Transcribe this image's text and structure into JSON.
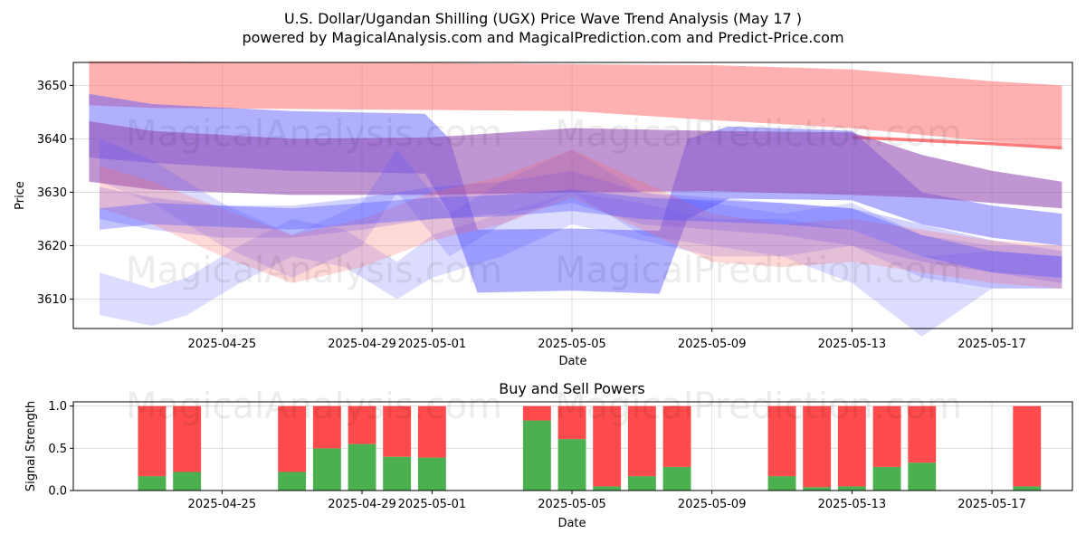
{
  "title_line1": "U.S. Dollar/Ugandan Shilling (UGX) Price Wave Trend Analysis (May 17 )",
  "title_line2": "powered by MagicalAnalysis.com and MagicalPrediction.com and Predict-Price.com",
  "watermark_left": "MagicalAnalysis.com",
  "watermark_right": "MagicalPrediction.com",
  "colors": {
    "red_band": "#ff6464",
    "blue_band": "#5050ff",
    "purple_band": "#9650b4",
    "buy": "#4caf50",
    "sell": "#ff4b4b"
  },
  "chart_data": [
    {
      "type": "area",
      "title": "",
      "xlabel": "Date",
      "ylabel": "Price",
      "ylim": [
        3604.5,
        3654.3
      ],
      "yticks": [
        3610,
        3620,
        3630,
        3640,
        3650
      ],
      "xlim_days": [
        -2.25,
        26.3
      ],
      "xticks": [
        {
          "day": 2,
          "label": "2025-04-25"
        },
        {
          "day": 6,
          "label": "2025-04-29"
        },
        {
          "day": 8,
          "label": "2025-05-01"
        },
        {
          "day": 12,
          "label": "2025-05-05"
        },
        {
          "day": 16,
          "label": "2025-05-09"
        },
        {
          "day": 20,
          "label": "2025-05-13"
        },
        {
          "day": 24,
          "label": "2025-05-17"
        }
      ],
      "x_origin_date": "2025-04-23",
      "grid": true,
      "bands": [
        {
          "color": "red",
          "alpha": 0.5,
          "x": [
            -1.8,
            0,
            4,
            8,
            12,
            16,
            20,
            24,
            26.0
          ],
          "upper": [
            3654.5,
            3654.5,
            3654.3,
            3654.2,
            3654.0,
            3653.8,
            3653.0,
            3650.8,
            3650.0
          ],
          "lower": [
            3646.3,
            3645.8,
            3645.6,
            3645.4,
            3645.2,
            3643.5,
            3642.0,
            3639.5,
            3638.5
          ]
        },
        {
          "color": "red",
          "alpha": 0.85,
          "x": [
            20,
            22,
            24,
            26.0
          ],
          "upper": [
            3640.6,
            3640.0,
            3639.4,
            3638.6
          ],
          "lower": [
            3640.0,
            3639.4,
            3638.8,
            3638.0
          ]
        },
        {
          "color": "blue",
          "alpha": 0.45,
          "x": [
            -1.8,
            0,
            4,
            7.8,
            8.5,
            9.3,
            12,
            14.5,
            15.3,
            16.5,
            20,
            22,
            24,
            26.0
          ],
          "upper": [
            3648.4,
            3646.5,
            3645.2,
            3644.7,
            3640,
            3623.0,
            3623.2,
            3622.8,
            3640,
            3642.3,
            3641.5,
            3630,
            3627.5,
            3626.0
          ],
          "lower": [
            3636.5,
            3635.5,
            3634.0,
            3633.5,
            3626,
            3611.2,
            3611.6,
            3611.0,
            3625,
            3628.8,
            3628.5,
            3624,
            3621.5,
            3620.0
          ]
        },
        {
          "color": "purple",
          "alpha": 0.6,
          "x": [
            -1.8,
            0,
            4,
            8,
            12,
            16,
            20,
            22,
            24,
            26.0
          ],
          "upper": [
            3643.3,
            3641.5,
            3640.0,
            3640.3,
            3642.0,
            3641.5,
            3641.2,
            3637.0,
            3634.0,
            3632.0
          ],
          "lower": [
            3632.0,
            3630.5,
            3629.5,
            3629.5,
            3630.0,
            3630.2,
            3629.5,
            3629.0,
            3628.0,
            3627.0
          ]
        },
        {
          "color": "blue",
          "alpha": 0.25,
          "x": [
            -1.5,
            0,
            2,
            4,
            6,
            8,
            10,
            12,
            14,
            16,
            18,
            20,
            22,
            24,
            26.0
          ],
          "upper": [
            3631,
            3629,
            3627.5,
            3627.5,
            3629,
            3631,
            3632,
            3634,
            3630,
            3629,
            3628,
            3627,
            3624,
            3621,
            3619
          ],
          "lower": [
            3625,
            3623,
            3621.5,
            3621.5,
            3623,
            3625,
            3626,
            3628,
            3624,
            3623,
            3622,
            3620,
            3617,
            3615,
            3613
          ]
        },
        {
          "color": "blue",
          "alpha": 0.2,
          "x": [
            -1.5,
            0,
            1,
            2.5,
            4,
            5.5,
            7,
            8,
            10,
            12,
            14,
            16,
            18,
            20,
            22,
            24,
            26.0
          ],
          "upper": [
            3615,
            3612,
            3614,
            3620,
            3625,
            3623,
            3617,
            3622,
            3626,
            3630,
            3628,
            3625,
            3625,
            3623,
            3618,
            3619,
            3618
          ],
          "lower": [
            3607,
            3605,
            3607,
            3613,
            3618,
            3616,
            3610,
            3614,
            3618,
            3624,
            3621,
            3618,
            3618,
            3613,
            3603,
            3612,
            3612
          ]
        },
        {
          "color": "blue",
          "alpha": 0.2,
          "x": [
            -1.5,
            0,
            2,
            4,
            6,
            7,
            8.5,
            10,
            12,
            14,
            16,
            18,
            20,
            22,
            24,
            26.0
          ],
          "upper": [
            3640,
            3636,
            3628,
            3622,
            3628,
            3638,
            3626,
            3632,
            3638,
            3630,
            3628,
            3626,
            3628,
            3622,
            3620,
            3620
          ],
          "lower": [
            3632,
            3628,
            3620,
            3614,
            3620,
            3630,
            3618,
            3624,
            3630,
            3622,
            3620,
            3618,
            3620,
            3614,
            3612,
            3612
          ]
        },
        {
          "color": "red",
          "alpha": 0.25,
          "x": [
            -1.5,
            0,
            2,
            4,
            6,
            8,
            10,
            12,
            14,
            16,
            18,
            20,
            22,
            24,
            26.0
          ],
          "upper": [
            3635,
            3632,
            3627,
            3622,
            3625,
            3630,
            3633,
            3638,
            3632,
            3626,
            3624,
            3625,
            3623,
            3621,
            3620
          ],
          "lower": [
            3627,
            3624,
            3618,
            3613,
            3616,
            3621,
            3624,
            3629,
            3623,
            3617,
            3616,
            3617,
            3615,
            3613,
            3612
          ]
        },
        {
          "color": "blue",
          "alpha": 0.35,
          "x": [
            -1.5,
            0,
            2,
            4,
            6,
            8,
            10,
            12,
            14,
            16,
            18,
            20,
            22,
            24,
            26.0
          ],
          "upper": [
            3627,
            3628,
            3627.5,
            3627,
            3628,
            3629,
            3629.5,
            3630.5,
            3629,
            3628.5,
            3628,
            3627,
            3622,
            3619,
            3618
          ],
          "lower": [
            3623,
            3624,
            3623.5,
            3623,
            3624,
            3625,
            3625.5,
            3626.5,
            3625,
            3624.5,
            3624,
            3623,
            3618,
            3615,
            3614
          ]
        }
      ]
    },
    {
      "type": "bar",
      "title": "Buy and Sell Powers",
      "xlabel": "Date",
      "ylabel": "Signal Strength",
      "ylim": [
        0,
        1.05
      ],
      "yticks": [
        {
          "value": 0,
          "label": "0.0"
        },
        {
          "value": 0.5,
          "label": "0.5"
        },
        {
          "value": 1,
          "label": "1.0"
        }
      ],
      "xlim_days": [
        -2.25,
        26.3
      ],
      "xticks": [
        {
          "day": 2,
          "label": "2025-04-25"
        },
        {
          "day": 6,
          "label": "2025-04-29"
        },
        {
          "day": 8,
          "label": "2025-05-01"
        },
        {
          "day": 12,
          "label": "2025-05-05"
        },
        {
          "day": 16,
          "label": "2025-05-09"
        },
        {
          "day": 20,
          "label": "2025-05-13"
        },
        {
          "day": 24,
          "label": "2025-05-17"
        }
      ],
      "series": [
        {
          "name": "Buy",
          "color": "green"
        },
        {
          "name": "Sell",
          "color": "red"
        }
      ],
      "bars": [
        {
          "day": 0,
          "buy": 0.17
        },
        {
          "day": 1,
          "buy": 0.22
        },
        {
          "day": 4,
          "buy": 0.22
        },
        {
          "day": 5,
          "buy": 0.5
        },
        {
          "day": 6,
          "buy": 0.55
        },
        {
          "day": 7,
          "buy": 0.4
        },
        {
          "day": 8,
          "buy": 0.39
        },
        {
          "day": 11,
          "buy": 0.83
        },
        {
          "day": 12,
          "buy": 0.61
        },
        {
          "day": 13,
          "buy": 0.05
        },
        {
          "day": 14,
          "buy": 0.17
        },
        {
          "day": 15,
          "buy": 0.28
        },
        {
          "day": 18,
          "buy": 0.17
        },
        {
          "day": 19,
          "buy": 0.04
        },
        {
          "day": 20,
          "buy": 0.05
        },
        {
          "day": 21,
          "buy": 0.28
        },
        {
          "day": 22,
          "buy": 0.33
        },
        {
          "day": 25,
          "buy": 0.05
        }
      ]
    }
  ]
}
